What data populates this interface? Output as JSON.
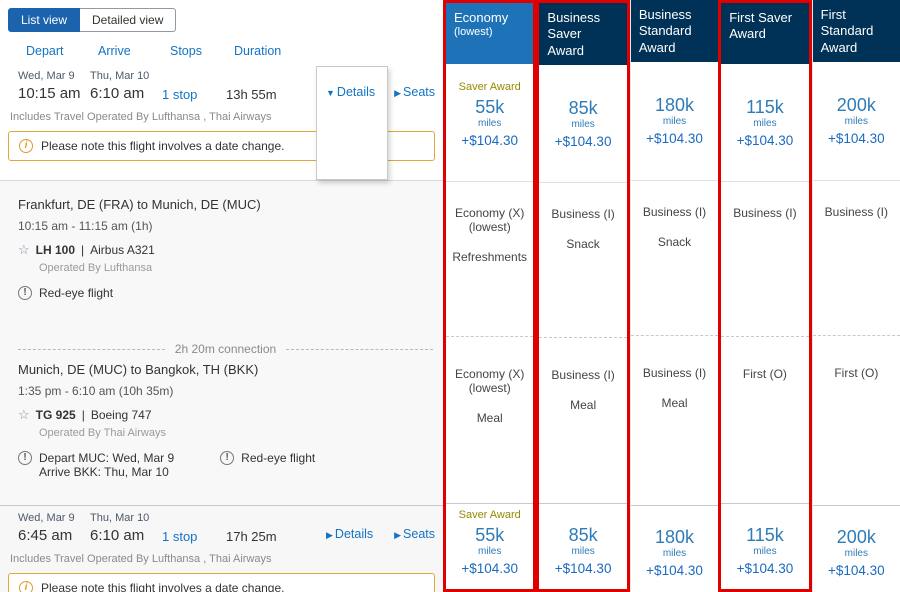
{
  "toolbar": {
    "list_view": "List view",
    "detailed_view": "Detailed view"
  },
  "sort": {
    "depart": "Depart",
    "arrive": "Arrive",
    "stops": "Stops",
    "duration": "Duration"
  },
  "icons": {
    "triangle_down": "▼",
    "triangle_right": "▶",
    "star": "☆",
    "info": "i",
    "alert": "!"
  },
  "misc": {
    "pipe": "|"
  },
  "columns": [
    {
      "title": "Economy",
      "subtitle": "(lowest)"
    },
    {
      "title": "Business Saver Award"
    },
    {
      "title": "Business Standard Award"
    },
    {
      "title": "First Saver Award"
    },
    {
      "title": "First Standard Award"
    }
  ],
  "flights": [
    {
      "depart_date": "Wed, Mar 9",
      "depart_time": "10:15 am",
      "arrive_date": "Thu, Mar 10",
      "arrive_time": "6:10 am",
      "stops": "1 stop",
      "duration": "13h 55m",
      "details_label": "Details",
      "seats_label": "Seats",
      "operated_by": "Includes Travel Operated By Lufthansa , Thai Airways",
      "notice": "Please note this flight involves a date change.",
      "fares": [
        {
          "badge": "Saver Award",
          "miles": "55k",
          "unit": "miles",
          "fees": "+$104.30"
        },
        {
          "miles": "85k",
          "unit": "miles",
          "fees": "+$104.30"
        },
        {
          "miles": "180k",
          "unit": "miles",
          "fees": "+$104.30"
        },
        {
          "miles": "115k",
          "unit": "miles",
          "fees": "+$104.30"
        },
        {
          "miles": "200k",
          "unit": "miles",
          "fees": "+$104.30"
        }
      ]
    },
    {
      "depart_date": "Wed, Mar 9",
      "depart_time": "6:45 am",
      "arrive_date": "Thu, Mar 10",
      "arrive_time": "6:10 am",
      "stops": "1 stop",
      "duration": "17h 25m",
      "details_label": "Details",
      "seats_label": "Seats",
      "operated_by": "Includes Travel Operated By Lufthansa , Thai Airways",
      "notice": "Please note this flight involves a date change.",
      "fares": [
        {
          "badge": "Saver Award",
          "miles": "55k",
          "unit": "miles",
          "fees": "+$104.30"
        },
        {
          "miles": "85k",
          "unit": "miles",
          "fees": "+$104.30"
        },
        {
          "miles": "180k",
          "unit": "miles",
          "fees": "+$104.30"
        },
        {
          "miles": "115k",
          "unit": "miles",
          "fees": "+$104.30"
        },
        {
          "miles": "200k",
          "unit": "miles",
          "fees": "+$104.30"
        }
      ]
    }
  ],
  "details": {
    "connection": "2h 20m connection",
    "segments": [
      {
        "route": "Frankfurt, DE (FRA) to Munich, DE (MUC)",
        "times": "10:15 am - 11:15 am (1h)",
        "flight_number": "LH 100",
        "aircraft": "Airbus A321",
        "operated_by": "Operated By Lufthansa",
        "note": "Red-eye flight",
        "cabins": [
          {
            "name": "Economy (X)",
            "sub": "(lowest)",
            "meal": "Refreshments"
          },
          {
            "name": "Business (I)",
            "meal": "Snack"
          },
          {
            "name": "Business (I)",
            "meal": "Snack"
          },
          {
            "name": "Business (I)"
          },
          {
            "name": "Business (I)"
          }
        ]
      },
      {
        "route": "Munich, DE (MUC) to Bangkok, TH (BKK)",
        "times": "1:35 pm - 6:10 am (10h 35m)",
        "flight_number": "TG 925",
        "aircraft": "Boeing 747",
        "operated_by": "Operated By Thai Airways",
        "note_depart": "Depart MUC: Wed, Mar 9",
        "note_arrive": "Arrive BKK: Thu, Mar 10",
        "note": "Red-eye flight",
        "cabins": [
          {
            "name": "Economy (X)",
            "sub": "(lowest)",
            "meal": "Meal"
          },
          {
            "name": "Business (I)",
            "meal": "Meal"
          },
          {
            "name": "Business (I)",
            "meal": "Meal"
          },
          {
            "name": "First (O)"
          },
          {
            "name": "First (O)"
          }
        ]
      }
    ]
  }
}
